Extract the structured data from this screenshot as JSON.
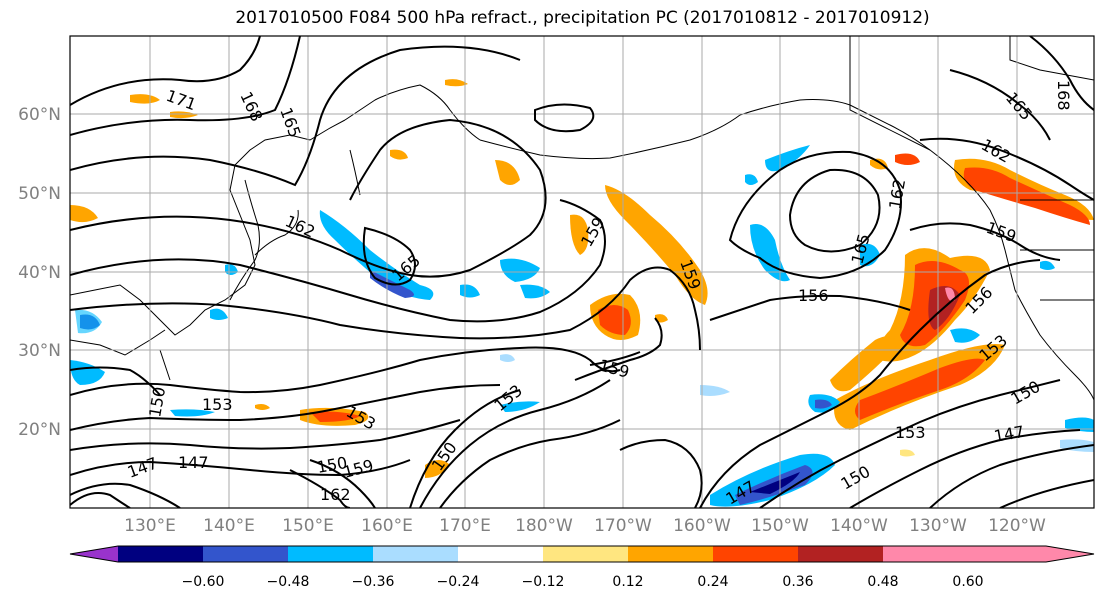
{
  "title": "2017010500 F084 500 hPa refract., precipitation PC (2017010812 - 2017010912)",
  "lat_labels": [
    "60°N",
    "50°N",
    "40°N",
    "30°N",
    "20°N"
  ],
  "lon_labels": [
    "130°E",
    "140°E",
    "150°E",
    "160°E",
    "170°E",
    "180°W",
    "170°W",
    "160°W",
    "150°W",
    "140°W",
    "130°W",
    "120°W"
  ],
  "colorbar": {
    "colors": [
      "#9933cc",
      "#000080",
      "#3355cc",
      "#00bbff",
      "#aaddff",
      "#ffffff",
      "#ffe680",
      "#ffa500",
      "#ff4400",
      "#b22222",
      "#ff88aa"
    ],
    "tick_labels": [
      "−0.60",
      "−0.48",
      "−0.36",
      "−0.24",
      "−0.12",
      "0.12",
      "0.24",
      "0.36",
      "0.48",
      "0.60"
    ]
  },
  "contours": {
    "labels": [
      {
        "text": "171"
      },
      {
        "text": "168"
      },
      {
        "text": "165"
      },
      {
        "text": "162"
      },
      {
        "text": "165"
      },
      {
        "text": "159"
      },
      {
        "text": "159"
      },
      {
        "text": "159"
      },
      {
        "text": "153"
      },
      {
        "text": "153"
      },
      {
        "text": "150"
      },
      {
        "text": "147"
      },
      {
        "text": "153"
      },
      {
        "text": "150"
      },
      {
        "text": "150"
      },
      {
        "text": "159"
      },
      {
        "text": "162"
      },
      {
        "text": "147"
      },
      {
        "text": "165"
      },
      {
        "text": "162"
      },
      {
        "text": "165"
      },
      {
        "text": "162"
      },
      {
        "text": "159"
      },
      {
        "text": "156"
      },
      {
        "text": "156"
      },
      {
        "text": "153"
      },
      {
        "text": "150"
      },
      {
        "text": "153"
      },
      {
        "text": "150"
      },
      {
        "text": "147"
      },
      {
        "text": "147"
      },
      {
        "text": "168"
      }
    ]
  }
}
